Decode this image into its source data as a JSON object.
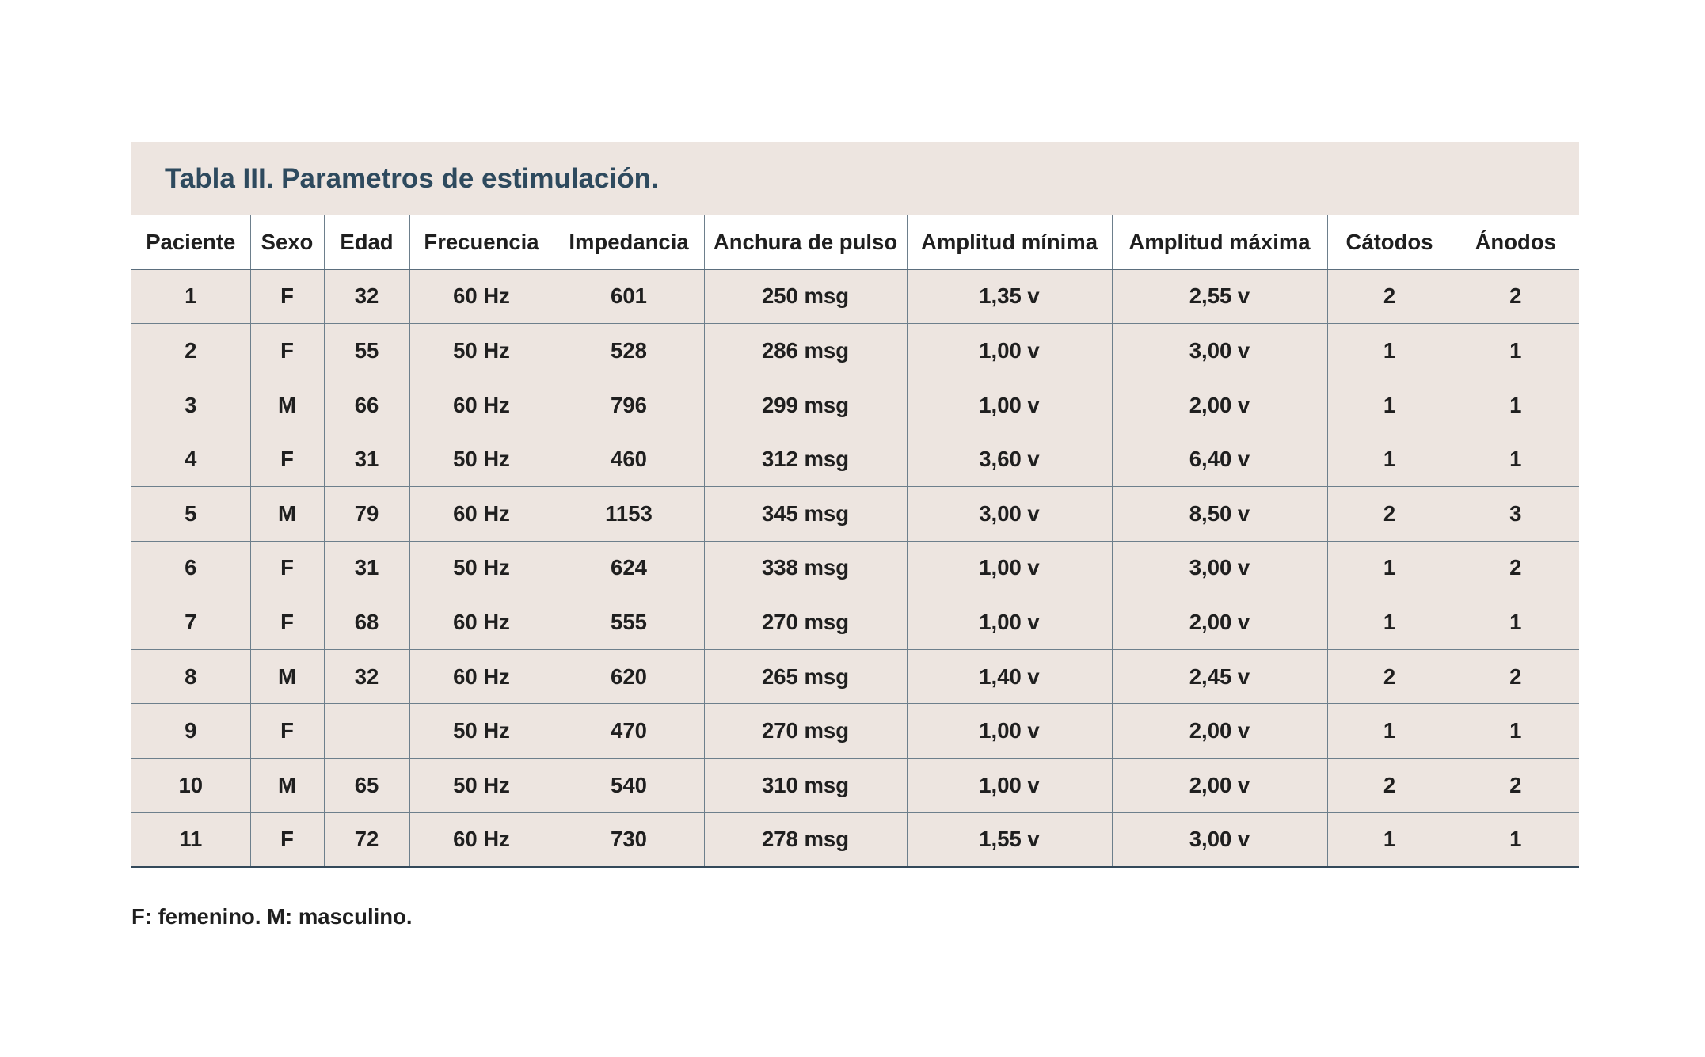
{
  "table": {
    "title": "Tabla III. Parametros de estimulación.",
    "headers": [
      "Paciente",
      "Sexo",
      "Edad",
      "Frecuencia",
      "Impedancia",
      "Anchura de pulso",
      "Amplitud mínima",
      "Amplitud máxima",
      "Cátodos",
      "Ánodos"
    ],
    "rows": [
      [
        "1",
        "F",
        "32",
        "60 Hz",
        "601",
        "250 msg",
        "1,35 v",
        "2,55 v",
        "2",
        "2"
      ],
      [
        "2",
        "F",
        "55",
        "50 Hz",
        "528",
        "286 msg",
        "1,00 v",
        "3,00 v",
        "1",
        "1"
      ],
      [
        "3",
        "M",
        "66",
        "60 Hz",
        "796",
        "299 msg",
        "1,00 v",
        "2,00 v",
        "1",
        "1"
      ],
      [
        "4",
        "F",
        "31",
        "50 Hz",
        "460",
        "312 msg",
        "3,60 v",
        "6,40 v",
        "1",
        "1"
      ],
      [
        "5",
        "M",
        "79",
        "60 Hz",
        "1153",
        "345 msg",
        "3,00 v",
        "8,50 v",
        "2",
        "3"
      ],
      [
        "6",
        "F",
        "31",
        "50 Hz",
        "624",
        "338 msg",
        "1,00 v",
        "3,00 v",
        "1",
        "2"
      ],
      [
        "7",
        "F",
        "68",
        "60 Hz",
        "555",
        "270 msg",
        "1,00 v",
        "2,00 v",
        "1",
        "1"
      ],
      [
        "8",
        "M",
        "32",
        "60 Hz",
        "620",
        "265 msg",
        "1,40 v",
        "2,45 v",
        "2",
        "2"
      ],
      [
        "9",
        "F",
        "",
        "50 Hz",
        "470",
        "270 msg",
        "1,00 v",
        "2,00 v",
        "1",
        "1"
      ],
      [
        "10",
        "M",
        "65",
        "50 Hz",
        "540",
        "310 msg",
        "1,00 v",
        "2,00 v",
        "2",
        "2"
      ],
      [
        "11",
        "F",
        "72",
        "60 Hz",
        "730",
        "278 msg",
        "1,55 v",
        "3,00 v",
        "1",
        "1"
      ]
    ]
  },
  "footnote": "F: femenino. M: masculino.",
  "colors": {
    "panel_background": "#ede5e0",
    "title_text": "#2e4a5e",
    "grid_lines": "#6d7f8c"
  }
}
